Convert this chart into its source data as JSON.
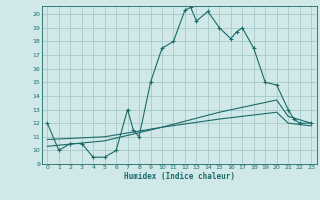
{
  "background_color": "#d0e8e8",
  "grid_color": "#a0c4c4",
  "line_color": "#1a6b6a",
  "xlabel": "Humidex (Indice chaleur)",
  "xlim": [
    -0.5,
    23.5
  ],
  "ylim": [
    9,
    20.6
  ],
  "yticks": [
    9,
    10,
    11,
    12,
    13,
    14,
    15,
    16,
    17,
    18,
    19,
    20
  ],
  "xticks": [
    0,
    1,
    2,
    3,
    4,
    5,
    6,
    7,
    8,
    9,
    10,
    11,
    12,
    13,
    14,
    15,
    16,
    17,
    18,
    19,
    20,
    21,
    22,
    23
  ],
  "curve1_x": [
    0,
    1,
    2,
    3,
    4,
    5,
    6,
    7,
    7.5,
    8,
    9,
    10,
    11,
    12,
    12.5,
    13,
    14,
    15,
    16,
    16.5,
    17,
    18,
    19,
    20,
    21,
    21.5,
    22,
    23
  ],
  "curve1_y": [
    12,
    10,
    10.5,
    10.5,
    9.5,
    9.5,
    10,
    13,
    11.5,
    11,
    15,
    17.5,
    18,
    20.3,
    20.5,
    19.5,
    20.2,
    19,
    18.2,
    18.7,
    19.0,
    17.5,
    15,
    14.8,
    13,
    12.3,
    12,
    12
  ],
  "curve2_x": [
    0,
    5,
    10,
    15,
    20,
    21,
    23
  ],
  "curve2_y": [
    10.3,
    10.7,
    11.7,
    12.8,
    13.7,
    12.5,
    12.0
  ],
  "curve3_x": [
    0,
    5,
    10,
    15,
    20,
    21,
    23
  ],
  "curve3_y": [
    10.8,
    11.0,
    11.7,
    12.3,
    12.8,
    12.0,
    11.8
  ]
}
